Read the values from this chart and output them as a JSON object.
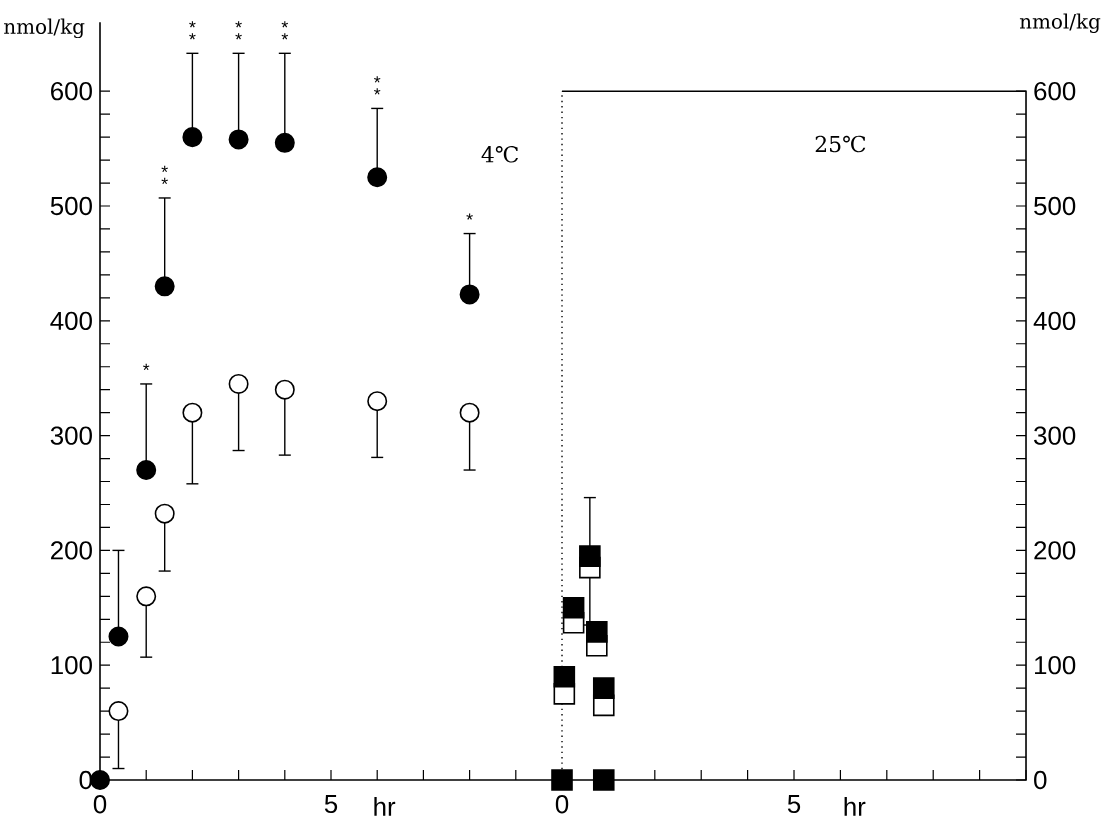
{
  "chart_data": [
    {
      "type": "scatter",
      "title": "4℃",
      "xlabel": "hr",
      "ylabel": "nmol/kg",
      "xlim": [
        0,
        10
      ],
      "ylim": [
        0,
        660
      ],
      "xticks": [
        0,
        {
          "value": 1,
          "label": null
        },
        {
          "value": 2,
          "label": null
        },
        {
          "value": 3,
          "label": null
        },
        {
          "value": 4,
          "label": null
        },
        5,
        {
          "value": 6,
          "label": null
        },
        {
          "value": 7,
          "label": null
        },
        {
          "value": 8,
          "label": null
        },
        {
          "value": 9,
          "label": null
        },
        {
          "value": 10,
          "label": null
        }
      ],
      "yticks": [
        0,
        {
          "value": 20,
          "label": null
        },
        {
          "value": 40,
          "label": null
        },
        {
          "value": 60,
          "label": null
        },
        {
          "value": 80,
          "label": null
        },
        100,
        {
          "value": 120,
          "label": null
        },
        {
          "value": 140,
          "label": null
        },
        {
          "value": 160,
          "label": null
        },
        {
          "value": 180,
          "label": null
        },
        200,
        {
          "value": 220,
          "label": null
        },
        {
          "value": 240,
          "label": null
        },
        {
          "value": 260,
          "label": null
        },
        {
          "value": 280,
          "label": null
        },
        300,
        {
          "value": 320,
          "label": null
        },
        {
          "value": 340,
          "label": null
        },
        {
          "value": 360,
          "label": null
        },
        {
          "value": 380,
          "label": null
        },
        400,
        {
          "value": 420,
          "label": null
        },
        {
          "value": 440,
          "label": null
        },
        {
          "value": 460,
          "label": null
        },
        {
          "value": 480,
          "label": null
        },
        500,
        {
          "value": 520,
          "label": null
        },
        {
          "value": 540,
          "label": null
        },
        {
          "value": 560,
          "label": null
        },
        {
          "value": 580,
          "label": null
        },
        600
      ],
      "series": [
        {
          "color": "#ffffff",
          "marker": "circle",
          "x": [
            0.4,
            1,
            1.4,
            2,
            3,
            4,
            6,
            8
          ],
          "values": [
            60,
            160,
            232,
            320,
            345,
            340,
            330,
            320
          ],
          "errors": [
            [
              10,
              60
            ],
            [
              107,
              160
            ],
            [
              182,
              232
            ],
            [
              258,
              320
            ],
            [
              287,
              345
            ],
            [
              283,
              340
            ],
            [
              281,
              330
            ],
            [
              270,
              320
            ]
          ]
        },
        {
          "color": "#000000",
          "marker": "circle",
          "x": [
            0,
            0.4,
            1,
            1.4,
            2,
            3,
            4,
            6,
            8
          ],
          "values": [
            0,
            125,
            270,
            430,
            560,
            558,
            555,
            525,
            423
          ],
          "errors": [
            null,
            [
              125,
              200
            ],
            [
              270,
              345
            ],
            [
              430,
              507
            ],
            [
              560,
              633
            ],
            [
              558,
              633
            ],
            [
              555,
              633
            ],
            [
              525,
              585
            ],
            [
              423,
              476
            ]
          ]
        }
      ],
      "annotations": [
        "*",
        "*",
        "*",
        "*",
        "*",
        "*",
        "*",
        "*",
        "*",
        "*",
        "*",
        "*"
      ]
    },
    {
      "type": "scatter",
      "title": "25℃",
      "xlabel": "hr",
      "ylabel": "nmol/kg",
      "xlim": [
        0,
        10
      ],
      "ylim": [
        0,
        600
      ],
      "xticks": [
        0,
        {
          "value": 1,
          "label": null
        },
        {
          "value": 2,
          "label": null
        },
        {
          "value": 3,
          "label": null
        },
        {
          "value": 4,
          "label": null
        },
        5,
        {
          "value": 6,
          "label": null
        },
        {
          "value": 7,
          "label": null
        },
        {
          "value": 8,
          "label": null
        },
        {
          "value": 9,
          "label": null
        },
        {
          "value": 10,
          "label": null
        }
      ],
      "yticks": [
        0,
        {
          "value": 20,
          "label": null
        },
        {
          "value": 40,
          "label": null
        },
        {
          "value": 60,
          "label": null
        },
        {
          "value": 80,
          "label": null
        },
        100,
        {
          "value": 120,
          "label": null
        },
        {
          "value": 140,
          "label": null
        },
        {
          "value": 160,
          "label": null
        },
        {
          "value": 180,
          "label": null
        },
        200,
        {
          "value": 220,
          "label": null
        },
        {
          "value": 240,
          "label": null
        },
        {
          "value": 260,
          "label": null
        },
        {
          "value": 280,
          "label": null
        },
        300,
        {
          "value": 320,
          "label": null
        },
        {
          "value": 340,
          "label": null
        },
        {
          "value": 360,
          "label": null
        },
        {
          "value": 380,
          "label": null
        },
        400,
        {
          "value": 420,
          "label": null
        },
        {
          "value": 440,
          "label": null
        },
        {
          "value": 460,
          "label": null
        },
        {
          "value": 480,
          "label": null
        },
        500,
        {
          "value": 520,
          "label": null
        },
        {
          "value": 540,
          "label": null
        },
        {
          "value": 560,
          "label": null
        },
        {
          "value": 580,
          "label": null
        },
        600
      ],
      "ref_lines": [
        {
          "axis": "x",
          "value": 0,
          "line_style": "dotted"
        }
      ],
      "series": [
        {
          "color": "#ffffff",
          "marker": "square",
          "x": [
            0.05,
            0.25,
            0.6,
            0.75,
            0.9
          ],
          "values": [
            75,
            137,
            185,
            117,
            65
          ],
          "errors": [
            null,
            null,
            [
              135,
              185
            ],
            null,
            null
          ]
        },
        {
          "color": "#000000",
          "marker": "square",
          "x": [
            0,
            0.05,
            0.25,
            0.6,
            0.75,
            0.9,
            0.9
          ],
          "values": [
            0,
            90,
            150,
            195,
            129,
            80,
            0
          ],
          "errors": [
            null,
            null,
            null,
            [
              195,
              246
            ],
            null,
            null,
            null
          ]
        }
      ]
    }
  ]
}
